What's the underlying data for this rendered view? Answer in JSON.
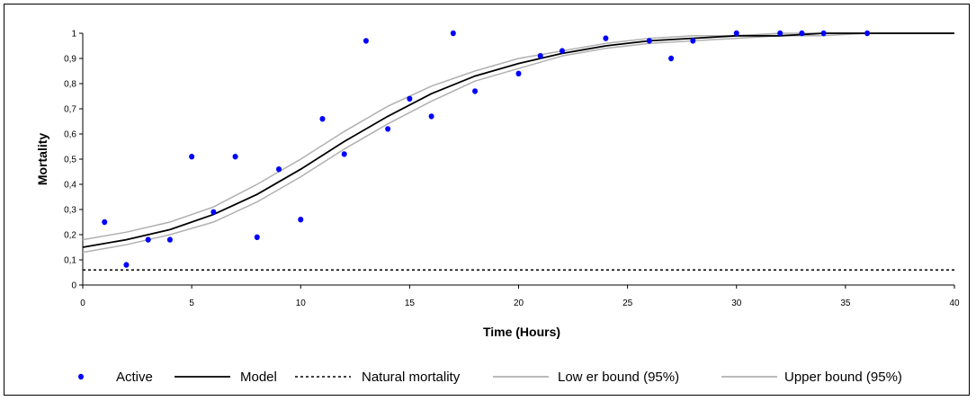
{
  "chart_data": {
    "type": "scatter",
    "xlabel": "Time (Hours)",
    "ylabel": "Mortality",
    "xlim": [
      0,
      40
    ],
    "ylim": [
      0,
      1
    ],
    "x_ticks": [
      0,
      5,
      10,
      15,
      20,
      25,
      30,
      35,
      40
    ],
    "y_ticks": [
      0,
      0.1,
      0.2,
      0.3,
      0.4,
      0.5,
      0.6,
      0.7,
      0.8,
      0.9,
      1
    ],
    "y_tick_labels": [
      "0",
      "0,1",
      "0,2",
      "0,3",
      "0,4",
      "0,5",
      "0,6",
      "0,7",
      "0,8",
      "0,9",
      "1"
    ],
    "x_tick_labels": [
      "0",
      "5",
      "10",
      "15",
      "20",
      "25",
      "30",
      "35",
      "40"
    ],
    "grid": false,
    "legend_position": "bottom",
    "series": [
      {
        "name": "Active",
        "kind": "points",
        "color": "#0000ff",
        "x": [
          1,
          2,
          3,
          4,
          5,
          6,
          7,
          8,
          9,
          10,
          11,
          12,
          13,
          14,
          15,
          16,
          17,
          18,
          20,
          21,
          22,
          24,
          26,
          27,
          28,
          30,
          32,
          33,
          34,
          36
        ],
        "y": [
          0.25,
          0.08,
          0.18,
          0.18,
          0.51,
          0.29,
          0.51,
          0.19,
          0.46,
          0.26,
          0.66,
          0.52,
          0.97,
          0.62,
          0.74,
          0.67,
          1.0,
          0.77,
          0.84,
          0.91,
          0.93,
          0.98,
          0.97,
          0.9,
          0.97,
          1.0,
          1.0,
          1.0,
          1.0,
          1.0
        ]
      },
      {
        "name": "Model",
        "kind": "line",
        "color": "#000000",
        "x": [
          0,
          2,
          4,
          6,
          8,
          10,
          12,
          14,
          16,
          18,
          20,
          22,
          24,
          26,
          28,
          30,
          32,
          34,
          36,
          38,
          40
        ],
        "y": [
          0.15,
          0.18,
          0.22,
          0.28,
          0.36,
          0.46,
          0.57,
          0.67,
          0.76,
          0.83,
          0.88,
          0.92,
          0.95,
          0.97,
          0.98,
          0.99,
          0.99,
          1.0,
          1.0,
          1.0,
          1.0
        ]
      },
      {
        "name": "Natural mortality",
        "kind": "dashed",
        "color": "#000000",
        "x": [
          0,
          40
        ],
        "y": [
          0.06,
          0.06
        ]
      },
      {
        "name": "Low er bound (95%)",
        "kind": "line",
        "color": "#b0b0b0",
        "x": [
          0,
          2,
          4,
          6,
          8,
          10,
          12,
          14,
          16,
          18,
          20,
          22,
          24,
          26,
          28,
          30,
          32,
          34,
          36,
          38,
          40
        ],
        "y": [
          0.13,
          0.16,
          0.2,
          0.25,
          0.33,
          0.43,
          0.54,
          0.64,
          0.73,
          0.81,
          0.86,
          0.91,
          0.94,
          0.96,
          0.97,
          0.98,
          0.99,
          0.99,
          1.0,
          1.0,
          1.0
        ]
      },
      {
        "name": "Upper bound (95%)",
        "kind": "line",
        "color": "#b0b0b0",
        "x": [
          0,
          2,
          4,
          6,
          8,
          10,
          12,
          14,
          16,
          18,
          20,
          22,
          24,
          26,
          28,
          30,
          32,
          34,
          36,
          38,
          40
        ],
        "y": [
          0.18,
          0.21,
          0.25,
          0.31,
          0.4,
          0.5,
          0.61,
          0.71,
          0.79,
          0.85,
          0.9,
          0.93,
          0.96,
          0.98,
          0.99,
          0.99,
          1.0,
          1.0,
          1.0,
          1.0,
          1.0
        ]
      }
    ]
  }
}
